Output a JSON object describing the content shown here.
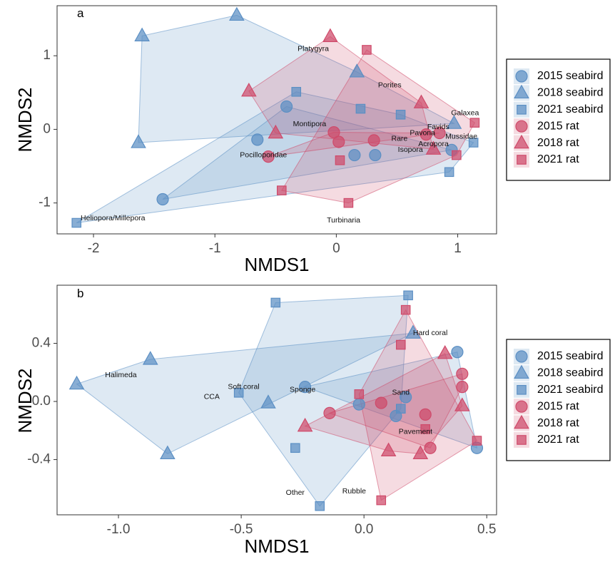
{
  "colors": {
    "seabird": "#5b8fc4",
    "rat": "#cf4a6a"
  },
  "legend": {
    "entries": [
      {
        "label": "2015 seabird",
        "year": "2015",
        "group": "seabird",
        "shape": "circle"
      },
      {
        "label": "2018 seabird",
        "year": "2018",
        "group": "seabird",
        "shape": "triangle"
      },
      {
        "label": "2021 seabird",
        "year": "2021",
        "group": "seabird",
        "shape": "square"
      },
      {
        "label": "2015 rat",
        "year": "2015",
        "group": "rat",
        "shape": "circle"
      },
      {
        "label": "2018 rat",
        "year": "2018",
        "group": "rat",
        "shape": "triangle"
      },
      {
        "label": "2021 rat",
        "year": "2021",
        "group": "rat",
        "shape": "square"
      }
    ]
  },
  "chart_data": [
    {
      "type": "scatter",
      "panel_label": "a",
      "xlabel": "NMDS1",
      "ylabel": "NMDS2",
      "xlim": [
        -2.3,
        1.32
      ],
      "ylim": [
        -1.42,
        1.68
      ],
      "xticks": [
        -2,
        -1,
        0,
        1
      ],
      "xtick_labels": [
        "-2",
        "-1",
        "0",
        "1"
      ],
      "yticks": [
        -1,
        0,
        1
      ],
      "ytick_labels": [
        "-1",
        "0",
        "1"
      ],
      "grid": false,
      "legend_position": "right",
      "hulls": true,
      "points": {
        "2015 seabird": [
          [
            -1.43,
            -0.95
          ],
          [
            -0.65,
            -0.14
          ],
          [
            -0.41,
            0.31
          ],
          [
            0.15,
            -0.35
          ],
          [
            0.32,
            -0.35
          ],
          [
            0.95,
            -0.28
          ]
        ],
        "2018 seabird": [
          [
            -0.82,
            1.55
          ],
          [
            -1.6,
            1.27
          ],
          [
            -1.63,
            -0.18
          ],
          [
            0.17,
            0.78
          ],
          [
            0.97,
            0.08
          ]
        ],
        "2021 seabird": [
          [
            -2.14,
            -1.27
          ],
          [
            -0.33,
            0.51
          ],
          [
            0.2,
            0.28
          ],
          [
            0.53,
            0.2
          ],
          [
            0.93,
            -0.58
          ],
          [
            1.13,
            -0.18
          ]
        ],
        "2015 rat": [
          [
            -0.56,
            -0.37
          ],
          [
            -0.02,
            -0.04
          ],
          [
            0.02,
            -0.17
          ],
          [
            0.31,
            -0.15
          ],
          [
            0.74,
            -0.07
          ],
          [
            0.85,
            -0.05
          ]
        ],
        "2018 rat": [
          [
            -0.72,
            0.52
          ],
          [
            -0.5,
            -0.05
          ],
          [
            -0.05,
            1.26
          ],
          [
            0.7,
            0.36
          ],
          [
            0.8,
            -0.27
          ]
        ],
        "2021 rat": [
          [
            -0.45,
            -0.83
          ],
          [
            0.03,
            -0.42
          ],
          [
            0.1,
            -1.0
          ],
          [
            0.25,
            1.08
          ],
          [
            0.99,
            -0.35
          ],
          [
            1.14,
            0.09
          ]
        ]
      },
      "annotations": [
        {
          "text": "Platygyra",
          "x": -0.19,
          "y": 1.09
        },
        {
          "text": "Porites",
          "x": 0.44,
          "y": 0.6
        },
        {
          "text": "Galaxea",
          "x": 1.06,
          "y": 0.22
        },
        {
          "text": "Montipora",
          "x": -0.22,
          "y": 0.07
        },
        {
          "text": "Favids",
          "x": 0.84,
          "y": 0.03
        },
        {
          "text": "Pavona",
          "x": 0.71,
          "y": -0.05
        },
        {
          "text": "Rare",
          "x": 0.52,
          "y": -0.13
        },
        {
          "text": "Mussidae",
          "x": 1.03,
          "y": -0.1
        },
        {
          "text": "Acropora",
          "x": 0.8,
          "y": -0.2
        },
        {
          "text": "Isopora",
          "x": 0.61,
          "y": -0.28
        },
        {
          "text": "Pocilloporidae",
          "x": -0.6,
          "y": -0.35
        },
        {
          "text": "Heliopora/Millepora",
          "x": -1.84,
          "y": -1.21
        },
        {
          "text": "Turbinaria",
          "x": 0.06,
          "y": -1.24
        }
      ]
    },
    {
      "type": "scatter",
      "panel_label": "b",
      "xlabel": "NMDS1",
      "ylabel": "NMDS2",
      "xlim": [
        -1.25,
        0.54
      ],
      "ylim": [
        -0.78,
        0.8
      ],
      "xticks": [
        -1.0,
        -0.5,
        0.0,
        0.5
      ],
      "xtick_labels": [
        "-1.0",
        "-0.5",
        "0.0",
        "0.5"
      ],
      "yticks": [
        -0.4,
        0.0,
        0.4
      ],
      "ytick_labels": [
        "-0.4",
        "0.0",
        "0.4"
      ],
      "grid": false,
      "legend_position": "right",
      "hulls": true,
      "points": {
        "2015 seabird": [
          [
            -0.24,
            0.1
          ],
          [
            -0.02,
            -0.02
          ],
          [
            0.13,
            -0.1
          ],
          [
            0.17,
            0.03
          ],
          [
            0.38,
            0.34
          ],
          [
            0.46,
            -0.32
          ]
        ],
        "2018 seabird": [
          [
            -1.17,
            0.12
          ],
          [
            -0.87,
            0.29
          ],
          [
            -0.8,
            -0.36
          ],
          [
            -0.39,
            -0.01
          ],
          [
            0.2,
            0.47
          ]
        ],
        "2021 seabird": [
          [
            -0.51,
            0.06
          ],
          [
            -0.36,
            0.68
          ],
          [
            -0.28,
            -0.32
          ],
          [
            -0.18,
            -0.72
          ],
          [
            0.15,
            -0.05
          ],
          [
            0.18,
            0.73
          ]
        ],
        "2015 rat": [
          [
            -0.14,
            -0.08
          ],
          [
            0.07,
            -0.01
          ],
          [
            0.25,
            -0.09
          ],
          [
            0.27,
            -0.32
          ],
          [
            0.4,
            0.19
          ],
          [
            0.4,
            0.1
          ]
        ],
        "2018 rat": [
          [
            -0.24,
            -0.17
          ],
          [
            0.1,
            -0.34
          ],
          [
            0.23,
            -0.36
          ],
          [
            0.33,
            0.33
          ],
          [
            0.4,
            -0.03
          ]
        ],
        "2021 rat": [
          [
            -0.02,
            0.05
          ],
          [
            0.07,
            -0.68
          ],
          [
            0.15,
            0.39
          ],
          [
            0.17,
            0.63
          ],
          [
            0.25,
            -0.19
          ],
          [
            0.46,
            -0.27
          ]
        ]
      },
      "annotations": [
        {
          "text": "Hard coral",
          "x": 0.27,
          "y": 0.47
        },
        {
          "text": "Halimeda",
          "x": -0.99,
          "y": 0.18
        },
        {
          "text": "Soft coral",
          "x": -0.49,
          "y": 0.1
        },
        {
          "text": "CCA",
          "x": -0.62,
          "y": 0.03
        },
        {
          "text": "Sponge",
          "x": -0.25,
          "y": 0.08
        },
        {
          "text": "Sand",
          "x": 0.15,
          "y": 0.06
        },
        {
          "text": "Pavement",
          "x": 0.21,
          "y": -0.21
        },
        {
          "text": "Other",
          "x": -0.28,
          "y": -0.63
        },
        {
          "text": "Rubble",
          "x": -0.04,
          "y": -0.62
        }
      ]
    }
  ]
}
